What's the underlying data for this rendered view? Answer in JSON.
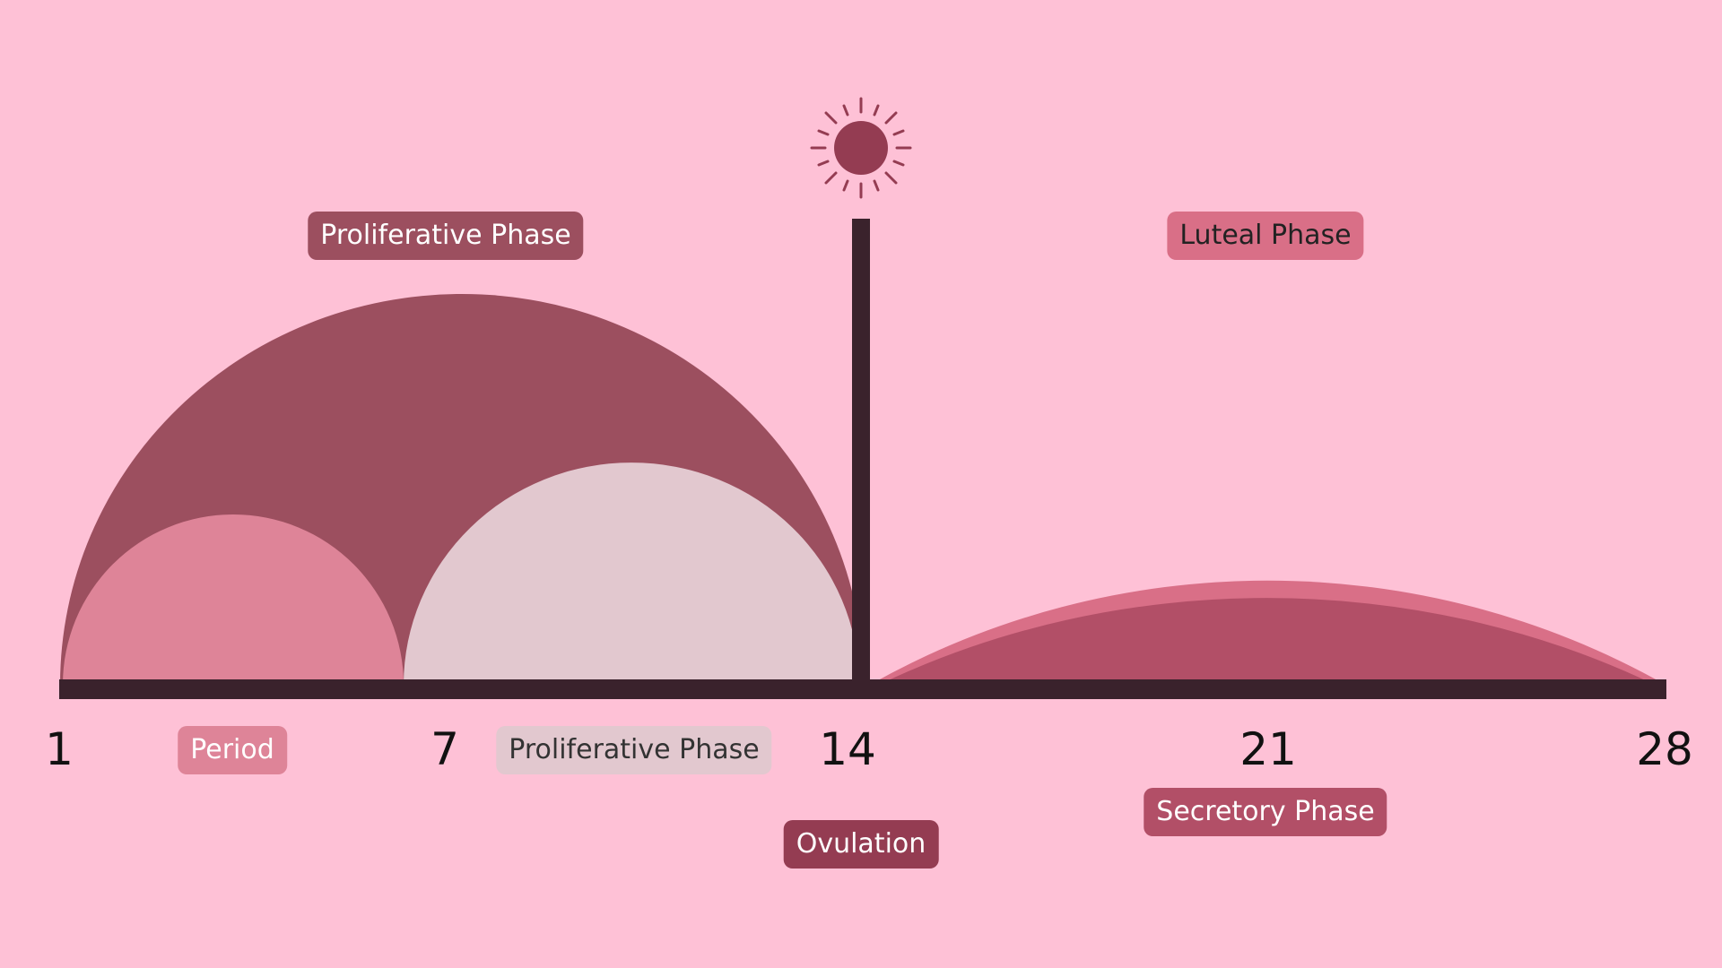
{
  "colors": {
    "background": "#fec1d6",
    "axis": "#3a222c",
    "proliferative_large_arc": "#9c4f5f",
    "period_arc": "#de8498",
    "proliferative_small_arc": "#e2c8cf",
    "luteal_arc": "#d96f87",
    "secretory_arc": "#b24f67",
    "sun": "#943c52"
  },
  "ticks": [
    "1",
    "7",
    "14",
    "21",
    "28"
  ],
  "labels": {
    "proliferative_top": "Proliferative Phase",
    "luteal_top": "Luteal Phase",
    "period": "Period",
    "proliferative_bottom": "Proliferative Phase",
    "secretory": "Secretory Phase",
    "ovulation": "Ovulation"
  },
  "icons": {
    "ovulation_marker": "sun-icon"
  }
}
